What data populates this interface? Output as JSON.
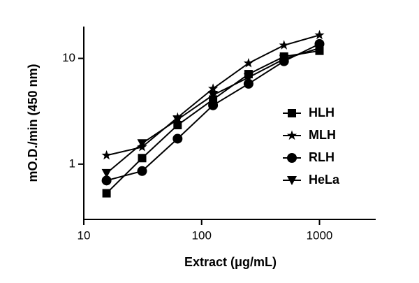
{
  "chart_data": {
    "type": "line",
    "x_label": "Extract (μg/mL)",
    "y_label": "mO.D./min (450 nm)",
    "x": [
      15.6,
      31.25,
      62.5,
      125,
      250,
      500,
      1000
    ],
    "series": [
      {
        "name": "HLH",
        "color": "#000000",
        "marker": "square",
        "values": [
          0.53,
          1.14,
          2.34,
          4.08,
          7.1,
          10.4,
          11.8
        ]
      },
      {
        "name": "MLH",
        "color": "#000000",
        "marker": "star",
        "values": [
          1.21,
          1.45,
          2.76,
          5.18,
          9.0,
          13.3,
          16.6
        ]
      },
      {
        "name": "RLH",
        "color": "#000000",
        "marker": "circle",
        "values": [
          0.7,
          0.86,
          1.74,
          3.6,
          5.75,
          9.4,
          13.7
        ]
      },
      {
        "name": "HeLa",
        "color": "#000000",
        "marker": "triangle-down",
        "values": [
          0.82,
          1.57,
          2.64,
          4.5,
          6.6,
          9.86,
          12.5
        ]
      }
    ],
    "xscale": "log",
    "yscale": "log",
    "xlim": [
      10,
      3000
    ],
    "ylim": [
      0.3,
      20
    ],
    "xticks": [
      10,
      100,
      1000
    ],
    "yticks": [
      1,
      10
    ],
    "grid": false
  }
}
